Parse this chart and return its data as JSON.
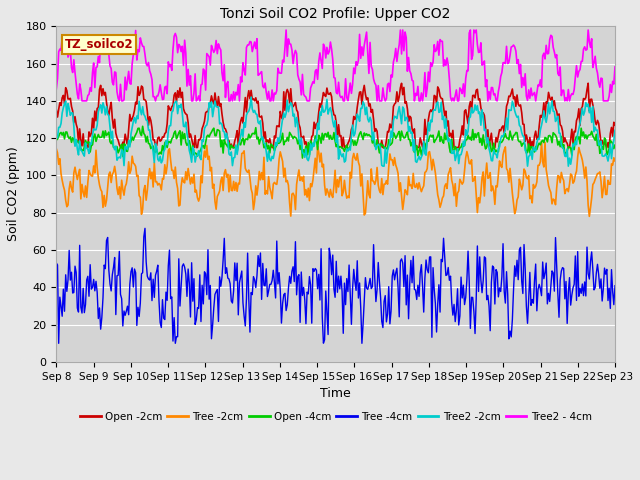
{
  "title": "Tonzi Soil CO2 Profile: Upper CO2",
  "xlabel": "Time",
  "ylabel": "Soil CO2 (ppm)",
  "ylim": [
    0,
    180
  ],
  "plot_bg_color": "#d4d4d4",
  "fig_bg_color": "#e8e8e8",
  "legend_label": "TZ_soilco2",
  "legend_bg": "#ffffcc",
  "legend_border": "#cc8800",
  "legend_text_color": "#aa0000",
  "series_order": [
    "open_2cm",
    "tree_2cm",
    "open_4cm",
    "tree_4cm",
    "tree2_2cm",
    "tree2_4cm"
  ],
  "series": {
    "open_2cm": {
      "color": "#cc0000",
      "label": "Open -2cm",
      "base": 130,
      "amp": 14,
      "noise": 3,
      "floor": 115,
      "ceil": 155
    },
    "tree_2cm": {
      "color": "#ff8800",
      "label": "Tree -2cm",
      "base": 110,
      "amp": 18,
      "noise": 4,
      "floor": 65,
      "ceil": 130
    },
    "open_4cm": {
      "color": "#00cc00",
      "label": "Open -4cm",
      "base": 118,
      "amp": 4,
      "noise": 2,
      "floor": 108,
      "ceil": 128
    },
    "tree_4cm": {
      "color": "#0000ee",
      "label": "Tree -4cm",
      "base": 45,
      "amp": 10,
      "noise": 10,
      "floor": 10,
      "ceil": 82
    },
    "tree2_2cm": {
      "color": "#00cccc",
      "label": "Tree2 -2cm",
      "base": 123,
      "amp": 14,
      "noise": 3,
      "floor": 105,
      "ceil": 145
    },
    "tree2_4cm": {
      "color": "#ff00ff",
      "label": "Tree2 - 4cm",
      "base": 155,
      "amp": 15,
      "noise": 5,
      "floor": 140,
      "ceil": 178
    }
  },
  "xtick_labels": [
    "Sep 8",
    "Sep 9",
    "Sep 10",
    "Sep 11",
    "Sep 12",
    "Sep 13",
    "Sep 14",
    "Sep 15",
    "Sep 16",
    "Sep 17",
    "Sep 18",
    "Sep 19",
    "Sep 20",
    "Sep 21",
    "Sep 22",
    "Sep 23"
  ],
  "n_points": 480,
  "n_cycles": 15,
  "figsize": [
    6.4,
    4.8
  ],
  "dpi": 100
}
